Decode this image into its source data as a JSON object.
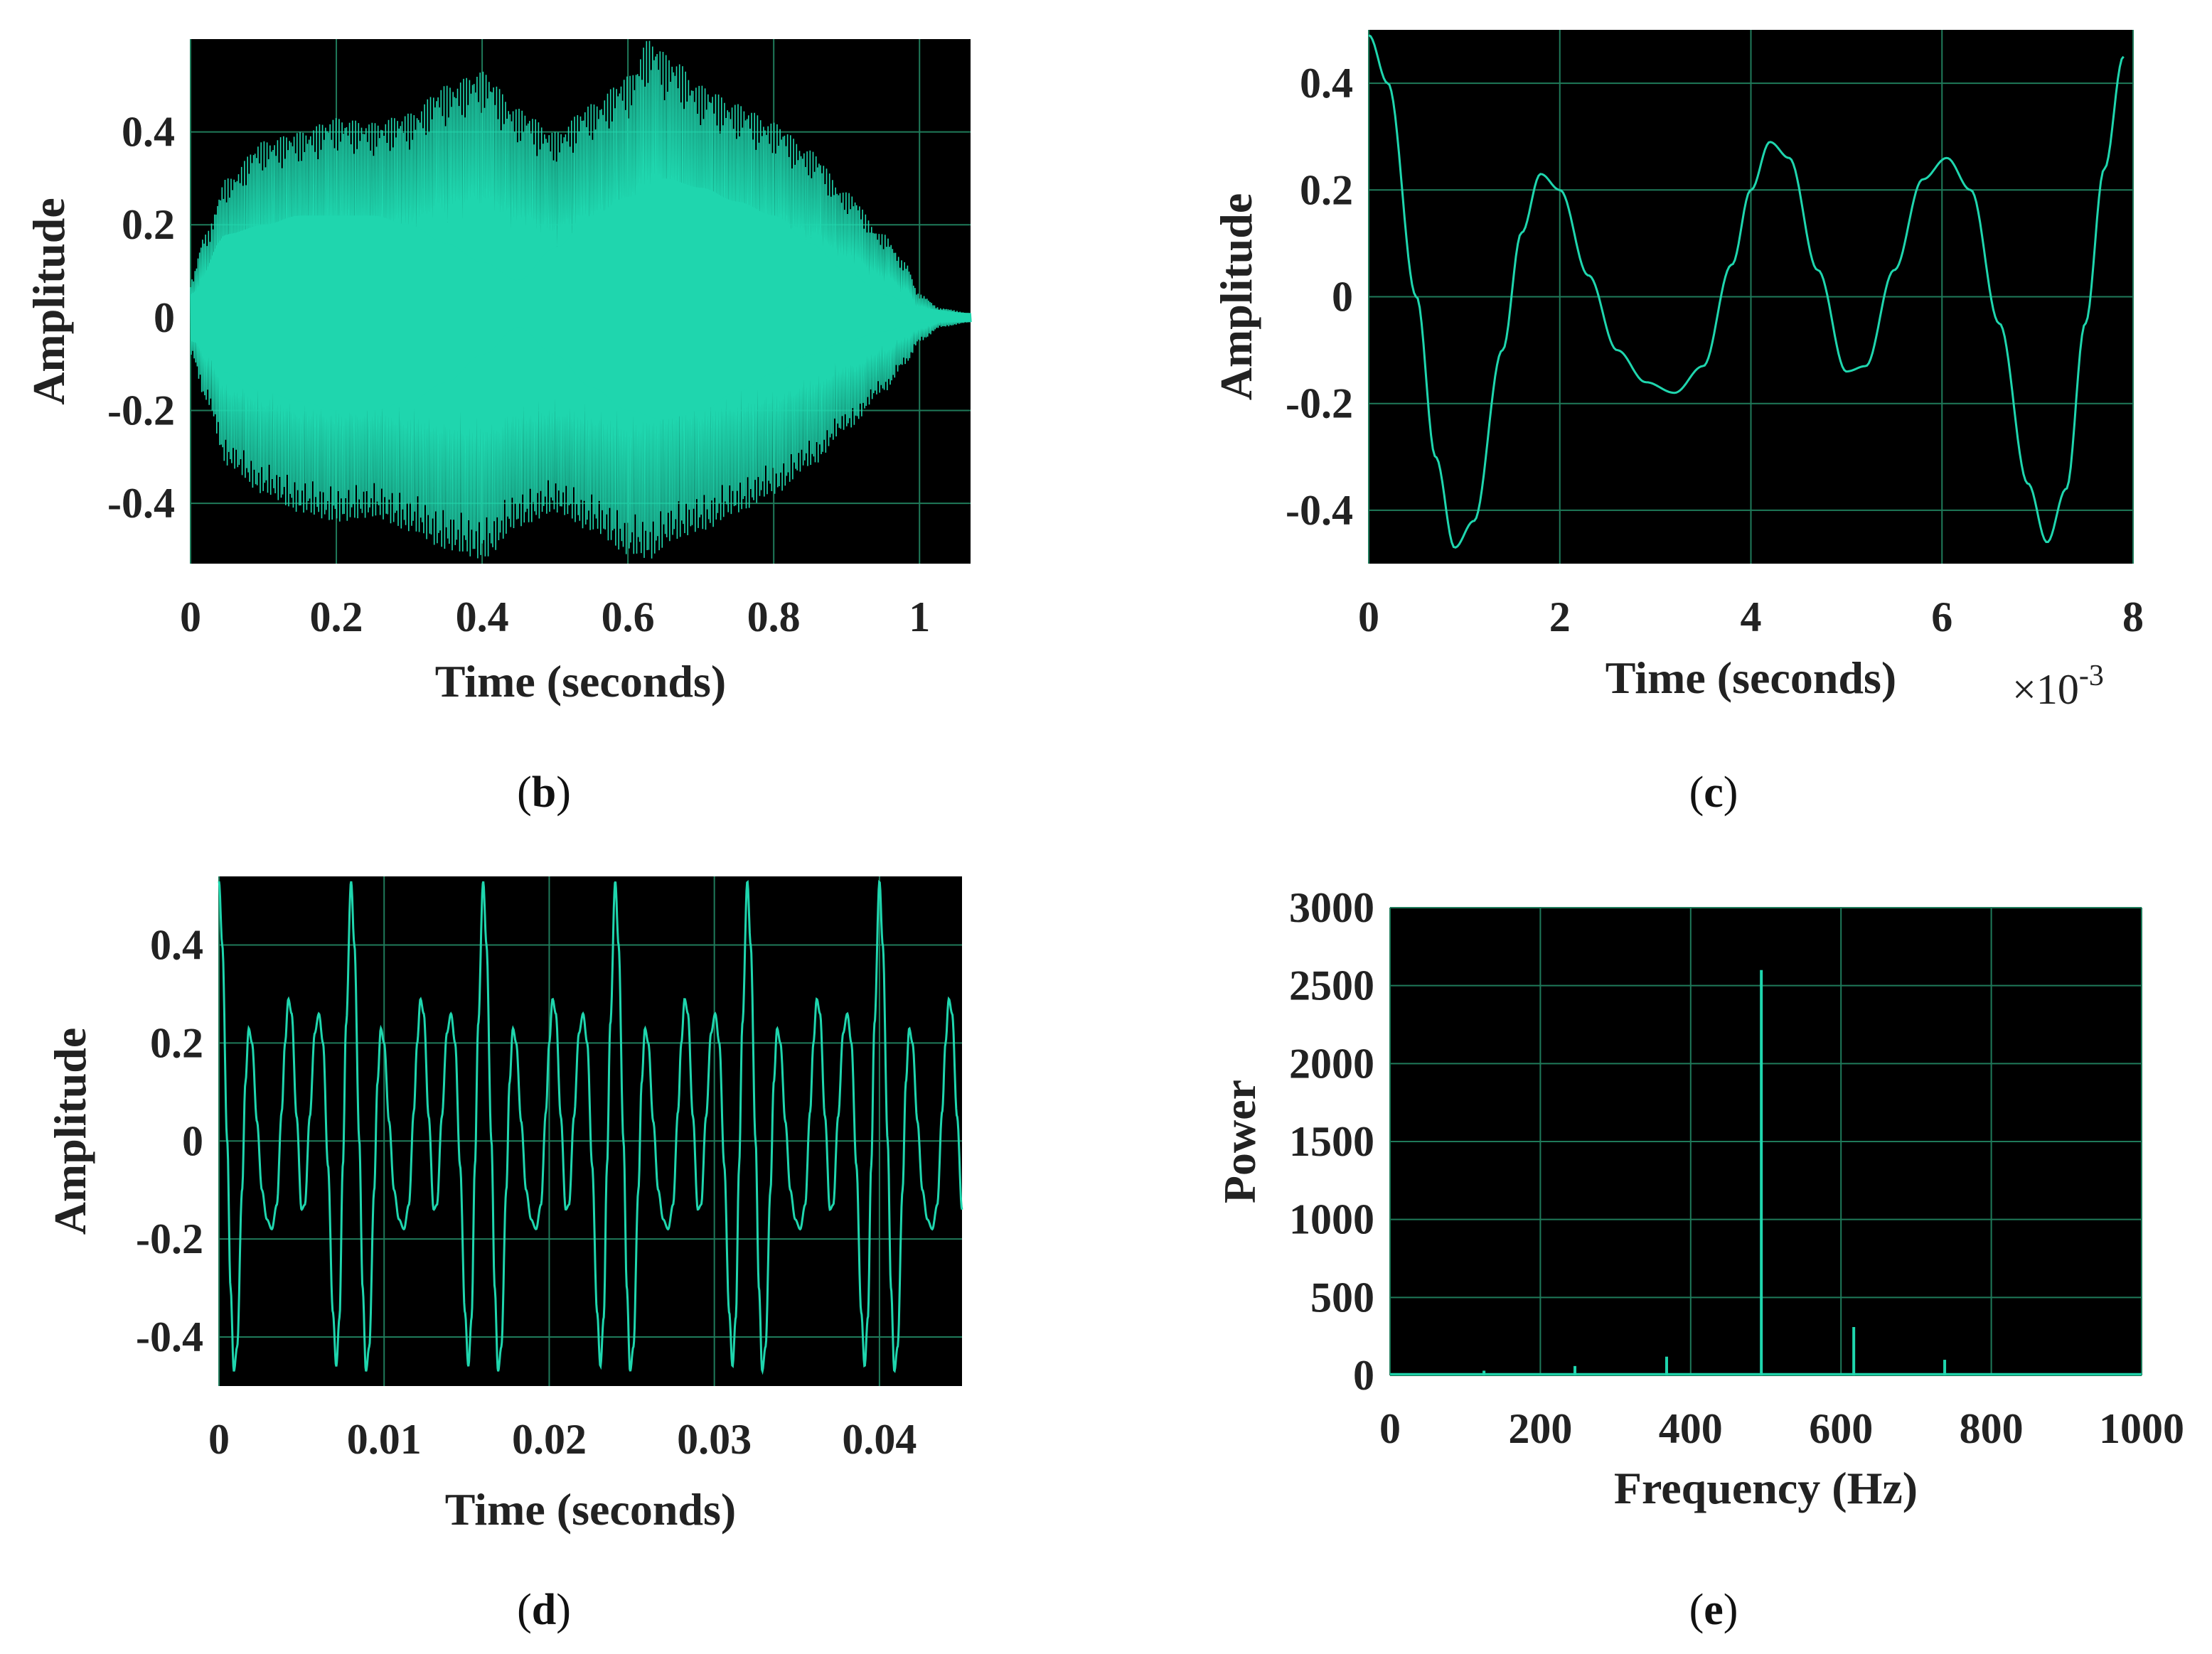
{
  "colors": {
    "background": "#000000",
    "grid": "#1f7a5a",
    "trace": "#1fd6ae",
    "text": "#222222"
  },
  "chart_data": [
    {
      "id": "b",
      "panel_label": "(b)",
      "panel_letter": "b",
      "type": "line",
      "description_series": "dense tone with two amplitude envelope lobes",
      "xlabel": "Time (seconds)",
      "ylabel": "Amplitude",
      "xlim": [
        0,
        1.07
      ],
      "ylim": [
        -0.53,
        0.6
      ],
      "xticks": [
        0,
        0.2,
        0.4,
        0.6,
        0.8,
        1
      ],
      "xtick_labels": [
        "0",
        "0.2",
        "0.4",
        "0.6",
        "0.8",
        "1"
      ],
      "yticks": [
        -0.4,
        -0.2,
        0,
        0.2,
        0.4
      ],
      "ytick_labels": [
        "-0.4",
        "-0.2",
        "0",
        "0.2",
        "0.4"
      ],
      "envelope": {
        "t": [
          0,
          0.02,
          0.05,
          0.1,
          0.15,
          0.2,
          0.25,
          0.3,
          0.35,
          0.4,
          0.45,
          0.5,
          0.55,
          0.6,
          0.63,
          0.66,
          0.7,
          0.75,
          0.8,
          0.85,
          0.9,
          0.95,
          0.98,
          1.0,
          1.03,
          1.07
        ],
        "upper": [
          0.08,
          0.18,
          0.3,
          0.38,
          0.4,
          0.43,
          0.42,
          0.44,
          0.5,
          0.53,
          0.45,
          0.4,
          0.46,
          0.52,
          0.6,
          0.56,
          0.5,
          0.46,
          0.42,
          0.36,
          0.27,
          0.18,
          0.12,
          0.05,
          0.02,
          0.01
        ],
        "lower": [
          -0.08,
          -0.18,
          -0.32,
          -0.38,
          -0.42,
          -0.44,
          -0.43,
          -0.46,
          -0.5,
          -0.52,
          -0.45,
          -0.42,
          -0.46,
          -0.51,
          -0.52,
          -0.48,
          -0.46,
          -0.42,
          -0.38,
          -0.32,
          -0.24,
          -0.16,
          -0.1,
          -0.05,
          -0.02,
          -0.01
        ]
      },
      "core": {
        "t": [
          0,
          0.05,
          0.1,
          0.15,
          0.2,
          0.25,
          0.3,
          0.35,
          0.4,
          0.45,
          0.5,
          0.55,
          0.6,
          0.65,
          0.7,
          0.75,
          0.8,
          0.85,
          0.9,
          0.95,
          1.0,
          1.07
        ],
        "upper": [
          0.05,
          0.18,
          0.2,
          0.22,
          0.22,
          0.22,
          0.2,
          0.16,
          0.12,
          0.08,
          0.15,
          0.22,
          0.26,
          0.3,
          0.28,
          0.25,
          0.22,
          0.16,
          0.1,
          0.05,
          0.02,
          0.01
        ],
        "lower": [
          -0.05,
          -0.12,
          -0.16,
          -0.18,
          -0.2,
          -0.2,
          -0.18,
          -0.14,
          -0.08,
          -0.02,
          -0.08,
          -0.15,
          -0.2,
          -0.22,
          -0.2,
          -0.16,
          -0.12,
          -0.08,
          -0.05,
          -0.03,
          -0.01,
          -0.01
        ]
      }
    },
    {
      "id": "c",
      "panel_label": "(c)",
      "panel_letter": "c",
      "type": "line",
      "xlabel": "Time (seconds)",
      "ylabel": "Amplitude",
      "x_exponent_label": "×10",
      "x_exponent_power": "-3",
      "xlim": [
        0,
        8
      ],
      "ylim": [
        -0.5,
        0.5
      ],
      "xticks": [
        0,
        2,
        4,
        6,
        8
      ],
      "xtick_labels": [
        "0",
        "2",
        "4",
        "6",
        "8"
      ],
      "yticks": [
        -0.4,
        -0.2,
        0,
        0.2,
        0.4
      ],
      "ytick_labels": [
        "-0.4",
        "-0.2",
        "0",
        "0.2",
        "0.4"
      ],
      "x": [
        0,
        0.2,
        0.5,
        0.7,
        0.9,
        1.1,
        1.4,
        1.6,
        1.8,
        2.0,
        2.3,
        2.6,
        2.9,
        3.2,
        3.5,
        3.8,
        4.0,
        4.2,
        4.4,
        4.7,
        5.0,
        5.2,
        5.5,
        5.8,
        6.05,
        6.3,
        6.6,
        6.9,
        7.1,
        7.3,
        7.5,
        7.7,
        7.9
      ],
      "y": [
        0.49,
        0.4,
        0.0,
        -0.3,
        -0.47,
        -0.42,
        -0.1,
        0.12,
        0.23,
        0.2,
        0.04,
        -0.1,
        -0.16,
        -0.18,
        -0.13,
        0.06,
        0.2,
        0.29,
        0.26,
        0.05,
        -0.14,
        -0.13,
        0.05,
        0.22,
        0.26,
        0.2,
        -0.05,
        -0.35,
        -0.46,
        -0.36,
        -0.05,
        0.24,
        0.45
      ]
    },
    {
      "id": "d",
      "panel_label": "(d)",
      "panel_letter": "d",
      "type": "line",
      "xlabel": "Time (seconds)",
      "ylabel": "Amplitude",
      "xlim": [
        0,
        0.045
      ],
      "ylim": [
        -0.5,
        0.54
      ],
      "xticks": [
        0,
        0.01,
        0.02,
        0.03,
        0.04
      ],
      "xtick_labels": [
        "0",
        "0.01",
        "0.02",
        "0.03",
        "0.04"
      ],
      "yticks": [
        -0.4,
        -0.2,
        0,
        0.2,
        0.4
      ],
      "ytick_labels": [
        "-0.4",
        "-0.2",
        "0",
        "0.2",
        "0.4"
      ],
      "period_s": 0.008,
      "period_x": [
        0,
        0.2,
        0.5,
        0.7,
        0.9,
        1.1,
        1.4,
        1.6,
        1.8,
        2.0,
        2.3,
        2.6,
        2.9,
        3.2,
        3.5,
        3.8,
        4.0,
        4.2,
        4.4,
        4.7,
        5.0,
        5.2,
        5.5,
        5.8,
        6.05,
        6.3,
        6.6,
        6.9,
        7.1,
        7.3,
        7.5,
        7.7,
        8.0
      ],
      "period_y": [
        0.53,
        0.4,
        0.0,
        -0.3,
        -0.47,
        -0.42,
        -0.1,
        0.12,
        0.23,
        0.2,
        0.04,
        -0.1,
        -0.16,
        -0.18,
        -0.13,
        0.06,
        0.2,
        0.29,
        0.26,
        0.05,
        -0.14,
        -0.13,
        0.05,
        0.22,
        0.26,
        0.2,
        -0.05,
        -0.35,
        -0.46,
        -0.36,
        -0.05,
        0.24,
        0.53
      ]
    },
    {
      "id": "e",
      "panel_label": "(e)",
      "panel_letter": "e",
      "type": "bar",
      "xlabel": "Frequency (Hz)",
      "ylabel": "Power",
      "xlim": [
        0,
        1000
      ],
      "ylim": [
        0,
        3000
      ],
      "xticks": [
        0,
        200,
        400,
        600,
        800,
        1000
      ],
      "xtick_labels": [
        "0",
        "200",
        "400",
        "600",
        "800",
        "1000"
      ],
      "yticks": [
        0,
        500,
        1000,
        1500,
        2000,
        2500,
        3000
      ],
      "ytick_labels": [
        "0",
        "500",
        "1000",
        "1500",
        "2000",
        "2500",
        "3000"
      ],
      "x": [
        125,
        246,
        368,
        494,
        617,
        738
      ],
      "values": [
        30,
        60,
        120,
        2600,
        310,
        100
      ]
    }
  ]
}
